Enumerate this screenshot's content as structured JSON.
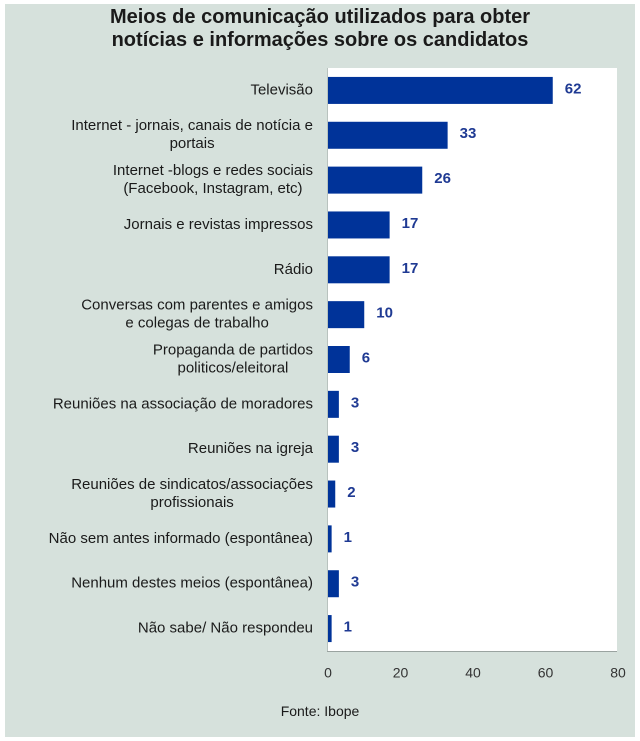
{
  "colors": {
    "background": "#d6e1dc",
    "plot_background": "#ffffff",
    "bar": "#003399",
    "value_label": "#1f3a93"
  },
  "source": "Fonte: Ibope",
  "chart_data": {
    "type": "bar",
    "orientation": "horizontal",
    "title_lines": [
      "Meios de comunicação utilizados para obter",
      "notícias e informações sobre os candidatos"
    ],
    "categories": [
      [
        "Televisão"
      ],
      [
        "Internet - jornais, canais de notícia e",
        "portais"
      ],
      [
        "Internet -blogs e redes sociais",
        "(Facebook, Instagram, etc)"
      ],
      [
        "Jornais e revistas impressos"
      ],
      [
        "Rádio"
      ],
      [
        "Conversas com parentes e amigos",
        "e colegas de trabalho"
      ],
      [
        "Propaganda de partidos",
        "politicos/eleitoral"
      ],
      [
        "Reuniões na associação de moradores"
      ],
      [
        "Reuniões na igreja"
      ],
      [
        "Reuniões de sindicatos/associações",
        "profissionais"
      ],
      [
        "Não sem antes informado (espontânea)"
      ],
      [
        "Nenhum destes meios (espontânea)"
      ],
      [
        "Não sabe/ Não respondeu"
      ]
    ],
    "values": [
      62,
      33,
      26,
      17,
      17,
      10,
      6,
      3,
      3,
      2,
      1,
      3,
      1
    ],
    "value_labels": [
      "62",
      "33",
      "26",
      "17",
      "17",
      "10",
      "6",
      "3",
      "3",
      "2",
      "1",
      "3",
      "1"
    ],
    "xlim": [
      0,
      80
    ],
    "xticks": [
      0,
      20,
      40,
      60,
      80
    ],
    "xtick_labels": [
      "0",
      "20",
      "40",
      "60",
      "80"
    ],
    "xlabel": "",
    "ylabel": "",
    "grid": false,
    "legend": "none"
  }
}
